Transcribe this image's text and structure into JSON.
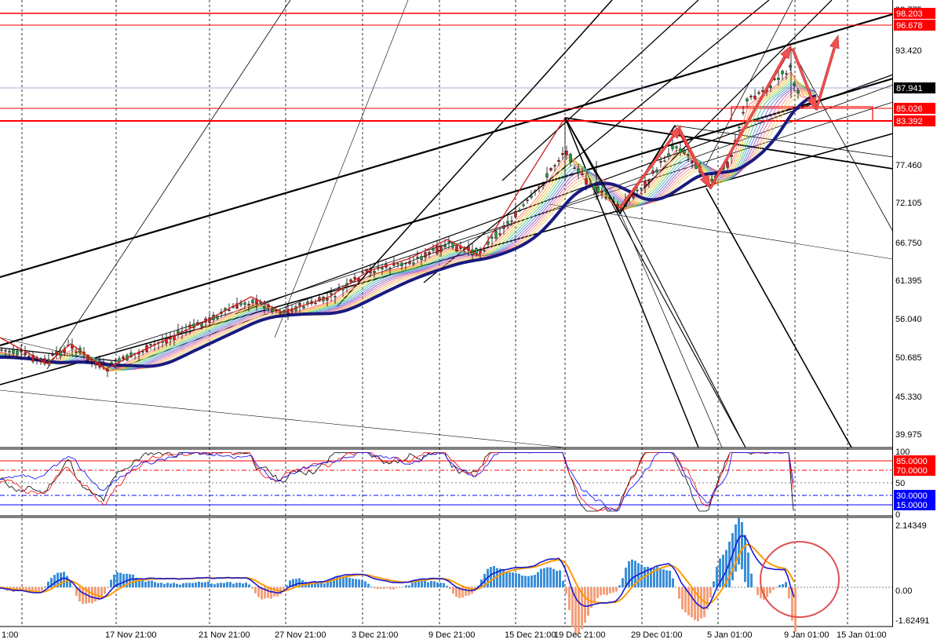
{
  "main_panel": {
    "price_axis": [
      "98.775",
      "93.420",
      "77.460",
      "72.105",
      "66.750",
      "61.395",
      "56.040",
      "50.685",
      "45.330",
      "39.975"
    ],
    "price_levels": [
      {
        "label": "98.203",
        "color": "#ff0000"
      },
      {
        "label": "96.678",
        "color": "#ff0000"
      },
      {
        "label": "87.941",
        "color": "#000000"
      },
      {
        "label": "85.026",
        "color": "#ff0000"
      },
      {
        "label": "83.392",
        "color": "#ff0000"
      }
    ]
  },
  "rsi_panel": {
    "axis": [
      "100",
      "50",
      "0"
    ],
    "levels": [
      {
        "label": "85.0000",
        "color": "#ff0000"
      },
      {
        "label": "70.0000",
        "color": "#ff0000"
      },
      {
        "label": "30.0000",
        "color": "#0000ff"
      },
      {
        "label": "15.0000",
        "color": "#0000ff"
      }
    ]
  },
  "macd_panel": {
    "axis": [
      "2.14349",
      "0.00",
      "-1.62491"
    ]
  },
  "time_axis": [
    "1:00",
    "17 Nov 21:00",
    "21 Nov 21:00",
    "27 Nov 21:00",
    "3 Dec 21:00",
    "9 Dec 21:00",
    "15 Dec 21:00",
    "19 Dec 21:00",
    "29 Dec 01:00",
    "5 Jan 01:00",
    "9 Jan 01:00",
    "15 Jan 01:00"
  ],
  "colors": {
    "support_resistance": "#ff0000",
    "arrow": "#f05050",
    "ma_ribbon_base": "#1a1a80",
    "rsi_main": "#000000",
    "rsi_fast": "#ff0000",
    "rsi_slow": "#0000ff",
    "histogram_pos": "#3a8fd8",
    "histogram_neg": "#f4a07a",
    "macd_line": "#1a1acc",
    "signal_line": "#ff9900",
    "circle": "#e05050"
  },
  "icons": [
    "up-arrow-icon",
    "down-arrow-icon",
    "highlight-circle-icon"
  ]
}
